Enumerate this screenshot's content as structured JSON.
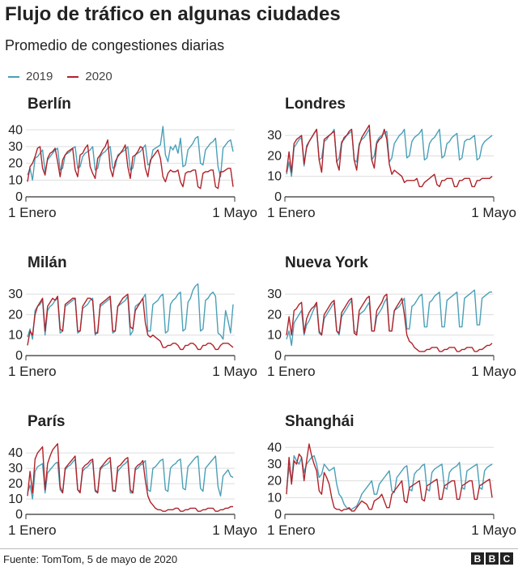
{
  "header": {
    "title": "Flujo de tráfico en algunas ciudades",
    "subtitle": "Promedio de congestiones diarias"
  },
  "legend": {
    "a": "2019",
    "b": "2020"
  },
  "colors": {
    "s2019": "#4aa0b8",
    "s2020": "#b0232a",
    "grid": "#dddddd",
    "axis": "#333333"
  },
  "footer": {
    "source": "Fuente: TomTom, 5 de mayo de 2020",
    "logo": [
      "B",
      "B",
      "C"
    ]
  },
  "chart_data": [
    {
      "type": "line",
      "title": "Berlín",
      "xlabel_start": "1 Enero",
      "xlabel_end": "1 Mayo",
      "yticks": [
        0,
        10,
        20,
        30,
        40
      ],
      "ylim": [
        0,
        44
      ],
      "series": [
        {
          "name": "2019",
          "values": [
            13,
            17,
            10,
            23,
            24,
            26,
            28,
            15,
            22,
            24,
            26,
            28,
            29,
            16,
            17,
            25,
            26,
            27,
            29,
            30,
            17,
            18,
            24,
            26,
            27,
            28,
            30,
            16,
            17,
            24,
            26,
            27,
            29,
            30,
            17,
            18,
            25,
            26,
            27,
            28,
            30,
            16,
            17,
            25,
            26,
            27,
            29,
            31,
            19,
            20,
            28,
            29,
            30,
            31,
            42,
            25,
            21,
            30,
            28,
            31,
            26,
            35,
            18,
            19,
            28,
            30,
            32,
            35,
            36,
            20,
            19,
            28,
            30,
            32,
            33,
            35,
            18,
            12,
            29,
            31,
            33,
            34,
            27
          ]
        },
        {
          "name": "2020",
          "values": [
            9,
            18,
            20,
            24,
            29,
            30,
            17,
            13,
            23,
            26,
            27,
            29,
            21,
            12,
            22,
            25,
            27,
            28,
            29,
            16,
            12,
            25,
            26,
            29,
            31,
            18,
            14,
            11,
            23,
            25,
            28,
            30,
            34,
            17,
            12,
            21,
            24,
            26,
            28,
            31,
            18,
            11,
            24,
            25,
            27,
            30,
            29,
            17,
            12,
            22,
            24,
            26,
            28,
            23,
            12,
            9,
            14,
            16,
            15,
            15,
            16,
            9,
            6,
            14,
            15,
            15,
            16,
            16,
            6,
            5,
            14,
            15,
            15,
            16,
            16,
            6,
            5,
            15,
            15,
            16,
            17,
            17,
            6
          ]
        }
      ]
    },
    {
      "type": "line",
      "title": "Londres",
      "xlabel_start": "1 Enero",
      "xlabel_end": "1 Mayo",
      "yticks": [
        0,
        10,
        20,
        30
      ],
      "ylim": [
        0,
        36
      ],
      "series": [
        {
          "name": "2019",
          "values": [
            11,
            17,
            10,
            24,
            26,
            28,
            29,
            15,
            25,
            27,
            29,
            31,
            33,
            18,
            19,
            27,
            28,
            30,
            31,
            33,
            17,
            19,
            27,
            28,
            30,
            31,
            32,
            18,
            17,
            26,
            28,
            29,
            31,
            33,
            18,
            20,
            27,
            29,
            30,
            31,
            32,
            17,
            19,
            26,
            28,
            30,
            31,
            33,
            19,
            20,
            27,
            29,
            30,
            31,
            33,
            18,
            19,
            26,
            28,
            29,
            31,
            33,
            19,
            20,
            26,
            27,
            29,
            30,
            31,
            18,
            19,
            27,
            28,
            28,
            29,
            30,
            18,
            19,
            25,
            27,
            28,
            29,
            30
          ]
        },
        {
          "name": "2020",
          "values": [
            12,
            22,
            12,
            26,
            28,
            29,
            30,
            16,
            24,
            27,
            29,
            31,
            33,
            18,
            12,
            28,
            29,
            30,
            31,
            32,
            17,
            13,
            26,
            29,
            30,
            32,
            33,
            18,
            13,
            25,
            29,
            31,
            33,
            35,
            18,
            14,
            26,
            28,
            29,
            33,
            28,
            16,
            11,
            13,
            12,
            11,
            10,
            7,
            8,
            8,
            8,
            8,
            9,
            5,
            5,
            7,
            8,
            9,
            10,
            11,
            6,
            5,
            8,
            8,
            9,
            9,
            9,
            5,
            5,
            8,
            8,
            9,
            9,
            9,
            5,
            5,
            8,
            8,
            9,
            9,
            9,
            9,
            10
          ]
        }
      ]
    },
    {
      "type": "line",
      "title": "Milán",
      "xlabel_start": "1 Enero",
      "xlabel_end": "1 Mayo",
      "yticks": [
        0,
        10,
        20,
        30
      ],
      "ylim": [
        0,
        36
      ],
      "series": [
        {
          "name": "2019",
          "values": [
            9,
            13,
            8,
            22,
            24,
            25,
            27,
            10,
            22,
            24,
            25,
            27,
            28,
            11,
            12,
            24,
            25,
            26,
            27,
            28,
            11,
            12,
            23,
            24,
            25,
            27,
            28,
            10,
            12,
            24,
            25,
            26,
            27,
            28,
            11,
            12,
            24,
            25,
            26,
            27,
            29,
            10,
            12,
            24,
            25,
            26,
            28,
            30,
            12,
            12,
            25,
            26,
            27,
            29,
            30,
            11,
            12,
            25,
            27,
            28,
            30,
            31,
            12,
            13,
            26,
            28,
            32,
            34,
            35,
            12,
            13,
            27,
            28,
            30,
            31,
            29,
            11,
            10,
            8,
            22,
            17,
            11,
            25
          ]
        },
        {
          "name": "2020",
          "values": [
            5,
            12,
            10,
            20,
            24,
            26,
            28,
            12,
            24,
            26,
            28,
            27,
            29,
            13,
            12,
            25,
            26,
            27,
            28,
            28,
            12,
            12,
            24,
            26,
            28,
            28,
            27,
            11,
            11,
            25,
            26,
            27,
            28,
            29,
            12,
            12,
            24,
            26,
            28,
            29,
            30,
            14,
            13,
            22,
            24,
            26,
            28,
            16,
            10,
            9,
            10,
            9,
            8,
            7,
            4,
            4,
            5,
            5,
            6,
            6,
            5,
            3,
            3,
            5,
            5,
            6,
            6,
            5,
            3,
            3,
            5,
            5,
            6,
            6,
            5,
            3,
            3,
            5,
            6,
            6,
            6,
            5,
            4
          ]
        }
      ]
    },
    {
      "type": "line",
      "title": "Nueva York",
      "xlabel_start": "1 Enero",
      "xlabel_end": "1 Mayo",
      "yticks": [
        0,
        10,
        20,
        30
      ],
      "ylim": [
        0,
        36
      ],
      "series": [
        {
          "name": "2019",
          "values": [
            8,
            12,
            5,
            16,
            18,
            20,
            22,
            10,
            15,
            17,
            20,
            23,
            25,
            11,
            10,
            18,
            20,
            22,
            24,
            26,
            12,
            10,
            19,
            21,
            23,
            25,
            27,
            12,
            11,
            20,
            21,
            22,
            24,
            26,
            12,
            12,
            19,
            21,
            23,
            26,
            28,
            12,
            12,
            22,
            23,
            24,
            26,
            28,
            13,
            13,
            24,
            25,
            27,
            29,
            30,
            14,
            14,
            26,
            27,
            29,
            30,
            31,
            14,
            14,
            27,
            28,
            29,
            30,
            31,
            14,
            14,
            28,
            29,
            30,
            31,
            32,
            15,
            15,
            28,
            29,
            30,
            31,
            31
          ]
        },
        {
          "name": "2020",
          "values": [
            10,
            19,
            10,
            22,
            23,
            25,
            26,
            11,
            18,
            21,
            23,
            24,
            26,
            12,
            10,
            20,
            22,
            24,
            26,
            27,
            12,
            11,
            21,
            23,
            25,
            27,
            28,
            11,
            10,
            22,
            24,
            26,
            28,
            29,
            12,
            12,
            22,
            24,
            26,
            29,
            30,
            12,
            12,
            22,
            24,
            26,
            28,
            20,
            10,
            7,
            6,
            4,
            3,
            2,
            2,
            2,
            3,
            3,
            4,
            4,
            4,
            2,
            2,
            3,
            3,
            4,
            4,
            4,
            2,
            2,
            3,
            3,
            4,
            4,
            4,
            2,
            2,
            3,
            3,
            4,
            5,
            5,
            6
          ]
        }
      ]
    },
    {
      "type": "line",
      "title": "París",
      "xlabel_start": "1 Enero",
      "xlabel_end": "1 Mayo",
      "yticks": [
        0,
        10,
        20,
        30,
        40
      ],
      "ylim": [
        0,
        48
      ],
      "series": [
        {
          "name": "2019",
          "values": [
            14,
            19,
            10,
            28,
            31,
            32,
            33,
            14,
            27,
            29,
            31,
            33,
            34,
            16,
            14,
            29,
            31,
            32,
            34,
            36,
            16,
            15,
            28,
            30,
            31,
            33,
            35,
            15,
            14,
            29,
            31,
            32,
            33,
            35,
            15,
            15,
            28,
            30,
            32,
            33,
            35,
            14,
            14,
            29,
            30,
            32,
            33,
            35,
            16,
            15,
            30,
            31,
            33,
            35,
            36,
            16,
            15,
            30,
            32,
            33,
            35,
            36,
            17,
            16,
            31,
            33,
            35,
            37,
            38,
            17,
            15,
            30,
            32,
            34,
            36,
            38,
            18,
            12,
            25,
            27,
            29,
            25,
            24
          ]
        },
        {
          "name": "2020",
          "values": [
            12,
            28,
            14,
            36,
            40,
            42,
            44,
            16,
            33,
            38,
            42,
            44,
            46,
            18,
            14,
            30,
            32,
            34,
            36,
            38,
            16,
            14,
            30,
            32,
            33,
            35,
            36,
            16,
            14,
            30,
            32,
            34,
            36,
            37,
            16,
            15,
            31,
            32,
            34,
            36,
            37,
            16,
            14,
            30,
            32,
            33,
            35,
            22,
            12,
            8,
            6,
            4,
            3,
            3,
            2,
            2,
            3,
            3,
            3,
            4,
            4,
            2,
            2,
            3,
            3,
            4,
            4,
            4,
            2,
            2,
            3,
            3,
            4,
            4,
            4,
            2,
            2,
            3,
            3,
            4,
            4,
            5,
            5
          ]
        }
      ]
    },
    {
      "type": "line",
      "title": "Shanghái",
      "xlabel_start": "1 Enero",
      "xlabel_end": "1 Mayo",
      "yticks": [
        0,
        10,
        20,
        30,
        40
      ],
      "ylim": [
        0,
        44
      ],
      "series": [
        {
          "name": "2019",
          "values": [
            15,
            28,
            20,
            35,
            32,
            30,
            34,
            25,
            30,
            32,
            34,
            35,
            30,
            22,
            24,
            30,
            28,
            26,
            27,
            28,
            18,
            12,
            10,
            6,
            4,
            3,
            3,
            4,
            5,
            8,
            12,
            14,
            16,
            18,
            20,
            12,
            12,
            18,
            20,
            22,
            24,
            26,
            14,
            13,
            22,
            24,
            26,
            28,
            29,
            15,
            14,
            24,
            26,
            27,
            29,
            30,
            15,
            14,
            25,
            27,
            28,
            29,
            30,
            16,
            15,
            25,
            27,
            28,
            29,
            31,
            16,
            15,
            26,
            27,
            28,
            29,
            30,
            16,
            15,
            26,
            28,
            29,
            30
          ]
        },
        {
          "name": "2020",
          "values": [
            12,
            34,
            18,
            32,
            30,
            36,
            34,
            20,
            32,
            42,
            35,
            30,
            26,
            14,
            12,
            25,
            22,
            18,
            10,
            4,
            3,
            3,
            2,
            3,
            3,
            4,
            2,
            2,
            4,
            6,
            8,
            7,
            6,
            3,
            3,
            8,
            9,
            10,
            12,
            8,
            4,
            4,
            12,
            14,
            16,
            18,
            20,
            8,
            7,
            16,
            17,
            18,
            19,
            20,
            9,
            8,
            17,
            18,
            19,
            20,
            21,
            9,
            9,
            17,
            18,
            19,
            20,
            20,
            9,
            9,
            17,
            18,
            19,
            20,
            20,
            9,
            9,
            17,
            18,
            19,
            20,
            21,
            10
          ]
        }
      ]
    }
  ]
}
